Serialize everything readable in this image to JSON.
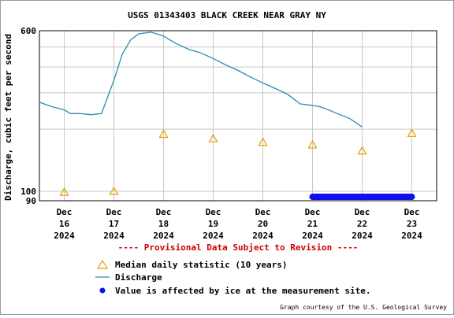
{
  "chart_data": {
    "type": "line",
    "title": "USGS 01343403 BLACK CREEK NEAR GRAY NY",
    "ylabel": "Discharge, cubic feet per second",
    "y_scale": "log",
    "ylim": [
      90,
      600
    ],
    "y_tick_labels": [
      "600",
      "100",
      "90"
    ],
    "x_ticks": [
      {
        "month": "Dec",
        "day": "16",
        "year": "2024"
      },
      {
        "month": "Dec",
        "day": "17",
        "year": "2024"
      },
      {
        "month": "Dec",
        "day": "18",
        "year": "2024"
      },
      {
        "month": "Dec",
        "day": "19",
        "year": "2024"
      },
      {
        "month": "Dec",
        "day": "20",
        "year": "2024"
      },
      {
        "month": "Dec",
        "day": "21",
        "year": "2024"
      },
      {
        "month": "Dec",
        "day": "22",
        "year": "2024"
      },
      {
        "month": "Dec",
        "day": "23",
        "year": "2024"
      }
    ],
    "xlim": [
      "2024-12-15 12:00",
      "2024-12-23 12:00"
    ],
    "grid": true,
    "series": [
      {
        "name": "Discharge",
        "color": "#2a8bb0",
        "points": [
          [
            "2024-12-15 12:00",
            270
          ],
          [
            "2024-12-15 18:00",
            257
          ],
          [
            "2024-12-16 00:00",
            248
          ],
          [
            "2024-12-16 03:00",
            238
          ],
          [
            "2024-12-16 08:00",
            238
          ],
          [
            "2024-12-16 13:00",
            235
          ],
          [
            "2024-12-16 18:00",
            238
          ],
          [
            "2024-12-17 00:00",
            345
          ],
          [
            "2024-12-17 04:00",
            460
          ],
          [
            "2024-12-17 08:00",
            540
          ],
          [
            "2024-12-17 12:00",
            580
          ],
          [
            "2024-12-17 18:00",
            590
          ],
          [
            "2024-12-18 00:00",
            565
          ],
          [
            "2024-12-18 06:00",
            520
          ],
          [
            "2024-12-18 12:00",
            488
          ],
          [
            "2024-12-18 18:00",
            468
          ],
          [
            "2024-12-19 00:00",
            440
          ],
          [
            "2024-12-19 06:00",
            410
          ],
          [
            "2024-12-19 12:00",
            385
          ],
          [
            "2024-12-19 18:00",
            358
          ],
          [
            "2024-12-20 00:00",
            335
          ],
          [
            "2024-12-20 06:00",
            315
          ],
          [
            "2024-12-20 12:00",
            295
          ],
          [
            "2024-12-20 18:00",
            265
          ],
          [
            "2024-12-20 22:00",
            262
          ],
          [
            "2024-12-21 03:00",
            258
          ],
          [
            "2024-12-21 06:00",
            252
          ],
          [
            "2024-12-21 12:00",
            238
          ],
          [
            "2024-12-21 18:00",
            225
          ],
          [
            "2024-12-22 00:00",
            205
          ]
        ]
      },
      {
        "name": "Median daily statistic (10 years)",
        "color": "#e0a000",
        "marker": "triangle",
        "points": [
          [
            "2024-12-16 00:00",
            99
          ],
          [
            "2024-12-17 00:00",
            100
          ],
          [
            "2024-12-18 00:00",
            189
          ],
          [
            "2024-12-19 00:00",
            180
          ],
          [
            "2024-12-20 00:00",
            173
          ],
          [
            "2024-12-21 00:00",
            168
          ],
          [
            "2024-12-22 00:00",
            157
          ],
          [
            "2024-12-23 00:00",
            191
          ]
        ]
      },
      {
        "name": "Value is affected by ice at the measurement site.",
        "color": "#1010ee",
        "range": [
          "2024-12-21 00:00",
          "2024-12-23 00:00"
        ],
        "y": 94
      }
    ],
    "annotation": "---- Provisional Data Subject to Revision ----",
    "legend": {
      "placement": "bottom",
      "items": [
        {
          "label": "Median daily statistic (10 years)",
          "marker": "triangle"
        },
        {
          "label": "Discharge",
          "marker": "line"
        },
        {
          "label": "Value is affected by ice at the measurement site.",
          "marker": "dot"
        }
      ]
    },
    "credit": "Graph courtesy of the U.S. Geological Survey"
  }
}
